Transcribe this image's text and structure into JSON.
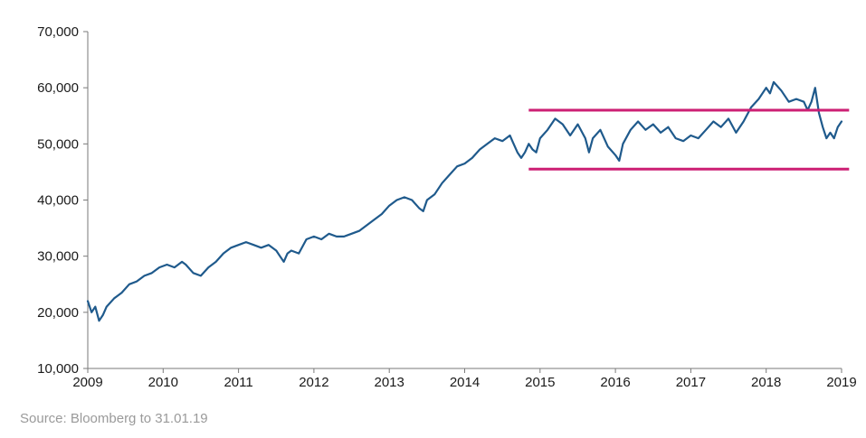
{
  "chart_data": {
    "type": "line",
    "title": "",
    "xlabel": "",
    "ylabel": "",
    "xlim": [
      2009.0,
      2019.0
    ],
    "ylim": [
      10000,
      70000
    ],
    "x_ticks": [
      2009,
      2010,
      2011,
      2012,
      2013,
      2014,
      2015,
      2016,
      2017,
      2018,
      2019
    ],
    "x_tick_labels": [
      "2009",
      "2010",
      "2011",
      "2012",
      "2013",
      "2014",
      "2015",
      "2016",
      "2017",
      "2018",
      "2019"
    ],
    "y_ticks": [
      10000,
      20000,
      30000,
      40000,
      50000,
      60000,
      70000
    ],
    "y_tick_labels": [
      "10,000",
      "20,000",
      "30,000",
      "40,000",
      "50,000",
      "60,000",
      "70,000"
    ],
    "grid": false,
    "series": [
      {
        "color": "#1f5a8c",
        "x": [
          2009.0,
          2009.05,
          2009.1,
          2009.15,
          2009.2,
          2009.25,
          2009.35,
          2009.45,
          2009.55,
          2009.65,
          2009.75,
          2009.85,
          2009.95,
          2010.05,
          2010.15,
          2010.25,
          2010.3,
          2010.4,
          2010.5,
          2010.6,
          2010.7,
          2010.8,
          2010.9,
          2011.0,
          2011.1,
          2011.2,
          2011.3,
          2011.4,
          2011.5,
          2011.55,
          2011.6,
          2011.65,
          2011.7,
          2011.8,
          2011.9,
          2012.0,
          2012.1,
          2012.2,
          2012.3,
          2012.4,
          2012.5,
          2012.6,
          2012.7,
          2012.8,
          2012.9,
          2013.0,
          2013.1,
          2013.2,
          2013.3,
          2013.4,
          2013.45,
          2013.5,
          2013.6,
          2013.7,
          2013.8,
          2013.9,
          2014.0,
          2014.1,
          2014.2,
          2014.3,
          2014.4,
          2014.5,
          2014.6,
          2014.65,
          2014.7,
          2014.75,
          2014.8,
          2014.85,
          2014.9,
          2014.95,
          2015.0,
          2015.1,
          2015.2,
          2015.3,
          2015.4,
          2015.5,
          2015.6,
          2015.65,
          2015.7,
          2015.8,
          2015.9,
          2016.0,
          2016.05,
          2016.1,
          2016.2,
          2016.3,
          2016.4,
          2016.5,
          2016.6,
          2016.7,
          2016.8,
          2016.9,
          2017.0,
          2017.1,
          2017.2,
          2017.3,
          2017.4,
          2017.5,
          2017.6,
          2017.7,
          2017.8,
          2017.9,
          2018.0,
          2018.05,
          2018.1,
          2018.2,
          2018.3,
          2018.4,
          2018.5,
          2018.55,
          2018.6,
          2018.65,
          2018.7,
          2018.75,
          2018.8,
          2018.85,
          2018.9,
          2018.95,
          2019.0
        ],
        "values": [
          22000,
          20000,
          21000,
          18500,
          19500,
          21000,
          22500,
          23500,
          25000,
          25500,
          26500,
          27000,
          28000,
          28500,
          28000,
          29000,
          28500,
          27000,
          26500,
          28000,
          29000,
          30500,
          31500,
          32000,
          32500,
          32000,
          31500,
          32000,
          31000,
          30000,
          29000,
          30500,
          31000,
          30500,
          33000,
          33500,
          33000,
          34000,
          33500,
          33500,
          34000,
          34500,
          35500,
          36500,
          37500,
          39000,
          40000,
          40500,
          40000,
          38500,
          38000,
          40000,
          41000,
          43000,
          44500,
          46000,
          46500,
          47500,
          49000,
          50000,
          51000,
          50500,
          51500,
          50000,
          48500,
          47500,
          48500,
          50000,
          49000,
          48500,
          51000,
          52500,
          54500,
          53500,
          51500,
          53500,
          51000,
          48500,
          51000,
          52500,
          49500,
          48000,
          47000,
          50000,
          52500,
          54000,
          52500,
          53500,
          52000,
          53000,
          51000,
          50500,
          51500,
          51000,
          52500,
          54000,
          53000,
          54500,
          52000,
          54000,
          56500,
          58000,
          60000,
          59000,
          61000,
          59500,
          57500,
          58000,
          57500,
          56000,
          57500,
          60000,
          55500,
          53000,
          51000,
          52000,
          51000,
          53000,
          54000
        ]
      }
    ],
    "reference_lines": [
      {
        "y": 56000,
        "x_start": 2014.85,
        "x_end": 2019.1,
        "color": "#cc1f73"
      },
      {
        "y": 45500,
        "x_start": 2014.85,
        "x_end": 2019.1,
        "color": "#cc1f73"
      }
    ],
    "colors": {
      "axis": "#7a7a7a",
      "line": "#1f5a8c",
      "band": "#cc1f73"
    }
  },
  "source": "Source: Bloomberg to 31.01.19"
}
